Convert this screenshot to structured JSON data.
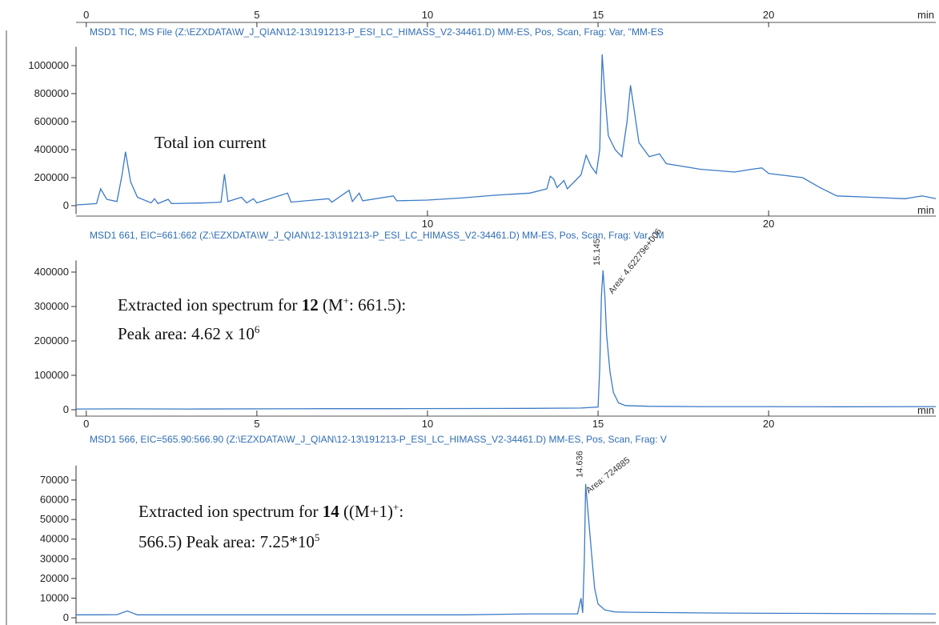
{
  "chart_data": [
    {
      "type": "line",
      "title": "MSD1 TIC, MS File (Z:\\EZXDATA\\W_J_QIAN\\12-13\\191213-P_ESI_LC_HIMASS_V2-34461.D)    MM-ES, Pos, Scan, Frag: Var, \"MM-ES",
      "x_label": "min",
      "annotation": [
        "Total ion current"
      ],
      "color": "#3b7ac6",
      "xlim": [
        -0.3,
        24.9
      ],
      "xticks": [
        0,
        5,
        10,
        15,
        20
      ],
      "xticks_bottom": [
        10,
        20
      ],
      "ylim": [
        -60000,
        1100000
      ],
      "yticks": [
        0,
        200000,
        400000,
        600000,
        800000,
        1000000
      ],
      "x": [
        -0.3,
        0.3,
        0.42,
        0.6,
        0.9,
        1.05,
        1.15,
        1.3,
        1.5,
        1.9,
        2.0,
        2.1,
        2.4,
        2.5,
        3.5,
        3.95,
        4.05,
        4.15,
        4.55,
        4.7,
        4.9,
        5.0,
        5.9,
        6.0,
        7.1,
        7.2,
        7.7,
        7.8,
        8.0,
        8.1,
        9.0,
        9.1,
        10,
        11,
        12,
        13,
        13.5,
        13.6,
        13.7,
        13.8,
        14.0,
        14.1,
        14.5,
        14.65,
        14.8,
        14.95,
        15.05,
        15.12,
        15.2,
        15.3,
        15.5,
        15.7,
        15.85,
        15.95,
        16.05,
        16.2,
        16.5,
        16.8,
        17,
        18,
        19,
        19.5,
        19.8,
        20,
        21,
        21.5,
        22,
        23,
        24,
        24.5,
        24.9
      ],
      "values": [
        5000,
        15000,
        120000,
        45000,
        30000,
        220000,
        385000,
        170000,
        60000,
        20000,
        50000,
        15000,
        45000,
        15000,
        20000,
        25000,
        225000,
        30000,
        60000,
        20000,
        50000,
        20000,
        90000,
        25000,
        50000,
        25000,
        110000,
        30000,
        90000,
        35000,
        70000,
        35000,
        40000,
        55000,
        75000,
        90000,
        120000,
        210000,
        190000,
        130000,
        180000,
        120000,
        220000,
        360000,
        280000,
        230000,
        400000,
        1080000,
        800000,
        500000,
        400000,
        350000,
        600000,
        860000,
        700000,
        450000,
        350000,
        370000,
        300000,
        260000,
        240000,
        260000,
        270000,
        230000,
        200000,
        130000,
        70000,
        60000,
        50000,
        70000,
        50000
      ]
    },
    {
      "type": "line",
      "title": "MSD1 661, EIC=661:662 (Z:\\EZXDATA\\W_J_QIAN\\12-13\\191213-P_ESI_LC_HIMASS_V2-34461.D)    MM-ES, Pos, Scan, Frag: Var, \"M",
      "x_label": "min",
      "annotation": [
        [
          "Extracted ion spectrum for ",
          "12",
          " (M",
          "+",
          ": 661.5):"
        ],
        [
          "Peak area: 4.62 x 10",
          "6"
        ]
      ],
      "peak_label": "15.145",
      "area_label": "Area: 4.62279e+006",
      "color": "#3b7ac6",
      "xlim": [
        -0.3,
        24.9
      ],
      "xticks": [
        0,
        5,
        10,
        15,
        20
      ],
      "ylim": [
        -20000,
        420000
      ],
      "yticks": [
        0,
        100000,
        200000,
        300000,
        400000
      ],
      "x": [
        -0.3,
        1,
        3,
        5,
        7,
        9,
        11,
        13,
        14.5,
        15.0,
        15.05,
        15.1,
        15.145,
        15.2,
        15.25,
        15.35,
        15.45,
        15.6,
        15.8,
        16.5,
        18,
        20,
        22,
        24.9
      ],
      "values": [
        2000,
        2500,
        2000,
        2500,
        3000,
        3000,
        3500,
        4000,
        5000,
        8000,
        120000,
        330000,
        405000,
        330000,
        220000,
        110000,
        50000,
        20000,
        12000,
        10000,
        9000,
        9000,
        8500,
        9000
      ]
    },
    {
      "type": "line",
      "title": "MSD1 566, EIC=565.90:566.90 (Z:\\EZXDATA\\W_J_QIAN\\12-13\\191213-P_ESI_LC_HIMASS_V2-34461.D)    MM-ES, Pos, Scan, Frag: V",
      "annotation": [
        [
          "Extracted ion spectrum for ",
          "14",
          " ((M+1)",
          "+",
          ":"
        ],
        [
          "566.5) Peak area: 7.25*10",
          "5"
        ]
      ],
      "peak_label": "14.636",
      "area_label": "Area: 724885",
      "color": "#3b7ac6",
      "xlim": [
        -0.3,
        24.9
      ],
      "ylim": [
        -3000,
        75000
      ],
      "yticks": [
        0,
        10000,
        20000,
        30000,
        40000,
        50000,
        60000,
        70000
      ],
      "x": [
        -0.3,
        0.9,
        1.2,
        1.5,
        3,
        5,
        7,
        9,
        11,
        13,
        14.4,
        14.5,
        14.55,
        14.6,
        14.636,
        14.7,
        14.8,
        14.9,
        15.0,
        15.2,
        15.5,
        16,
        18,
        20,
        22,
        24.9
      ],
      "values": [
        1500,
        1600,
        3500,
        1500,
        1500,
        1500,
        1500,
        1500,
        1500,
        2000,
        2000,
        10000,
        2500,
        30000,
        68000,
        55000,
        35000,
        15000,
        7000,
        4000,
        3000,
        2800,
        2500,
        2300,
        2200,
        2000
      ]
    }
  ]
}
